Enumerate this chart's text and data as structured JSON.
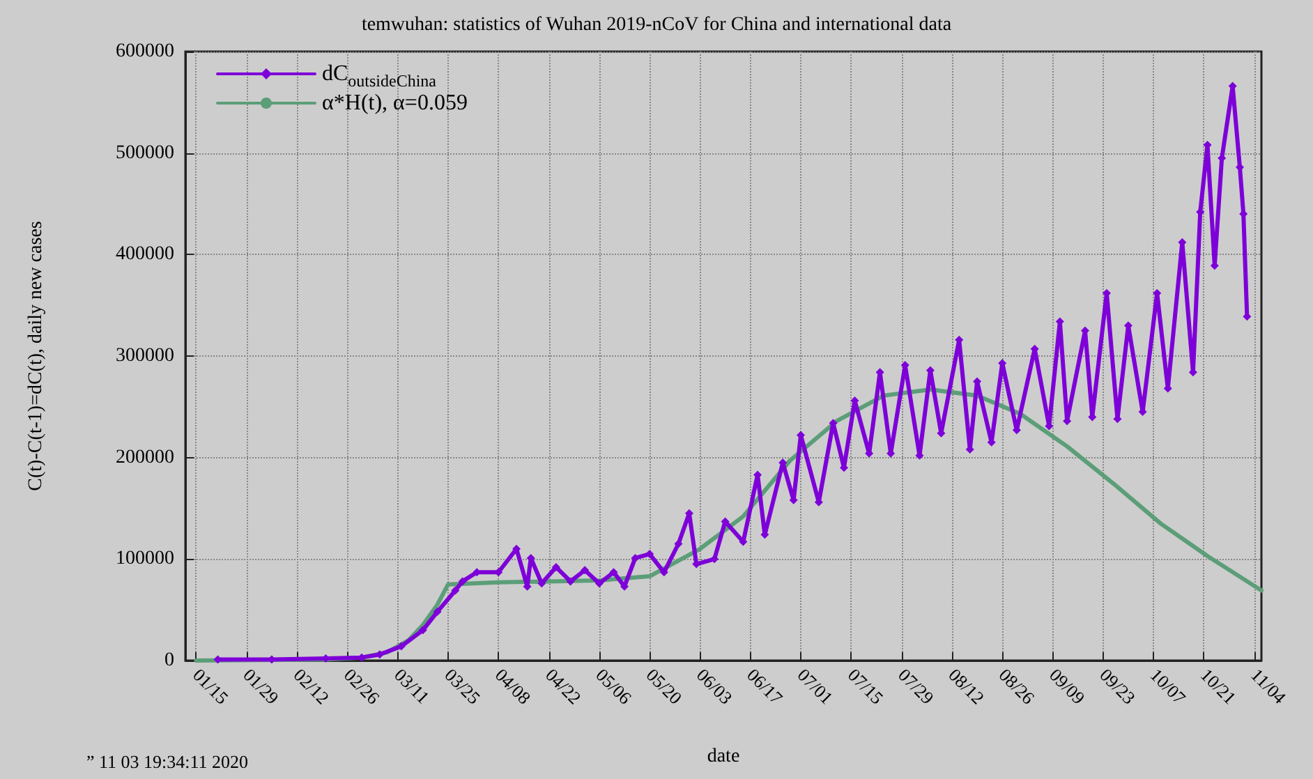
{
  "chart_data": {
    "type": "line",
    "title": "temwuhan: statistics of Wuhan 2019-nCoV for China and international data",
    "xlabel": "date",
    "ylabel": "C(t)-C(t-1)=dC(t), daily new cases",
    "annotations": [
      "” 11 03 19:34:11 2020"
    ],
    "xlim": [
      "2020-01-12",
      "2020-11-06"
    ],
    "xticks": [
      {
        "value": "2020-01-15",
        "label": "01/15"
      },
      {
        "value": "2020-01-29",
        "label": "01/29"
      },
      {
        "value": "2020-02-12",
        "label": "02/12"
      },
      {
        "value": "2020-02-26",
        "label": "02/26"
      },
      {
        "value": "2020-03-11",
        "label": "03/11"
      },
      {
        "value": "2020-03-25",
        "label": "03/25"
      },
      {
        "value": "2020-04-08",
        "label": "04/08"
      },
      {
        "value": "2020-04-22",
        "label": "04/22"
      },
      {
        "value": "2020-05-06",
        "label": "05/06"
      },
      {
        "value": "2020-05-20",
        "label": "05/20"
      },
      {
        "value": "2020-06-03",
        "label": "06/03"
      },
      {
        "value": "2020-06-17",
        "label": "06/17"
      },
      {
        "value": "2020-07-01",
        "label": "07/01"
      },
      {
        "value": "2020-07-15",
        "label": "07/15"
      },
      {
        "value": "2020-07-29",
        "label": "07/29"
      },
      {
        "value": "2020-08-12",
        "label": "08/12"
      },
      {
        "value": "2020-08-26",
        "label": "08/26"
      },
      {
        "value": "2020-09-09",
        "label": "09/09"
      },
      {
        "value": "2020-09-23",
        "label": "09/23"
      },
      {
        "value": "2020-10-07",
        "label": "10/07"
      },
      {
        "value": "2020-10-21",
        "label": "10/21"
      },
      {
        "value": "2020-11-04",
        "label": "11/04"
      }
    ],
    "ylim": [
      0,
      600000
    ],
    "yticks": [
      0,
      100000,
      200000,
      300000,
      400000,
      500000,
      600000
    ],
    "grid": true,
    "legend": "top left",
    "series": [
      {
        "name": "dC$_{outsideChina}$",
        "color": "#7e00d8",
        "marker": "diamond",
        "x": [
          "2020-01-21",
          "2020-02-05",
          "2020-02-20",
          "2020-03-01",
          "2020-03-06",
          "2020-03-12",
          "2020-03-18",
          "2020-03-22",
          "2020-03-27",
          "2020-03-29",
          "2020-04-02",
          "2020-04-08",
          "2020-04-13",
          "2020-04-16",
          "2020-04-17",
          "2020-04-20",
          "2020-04-24",
          "2020-04-28",
          "2020-05-02",
          "2020-05-06",
          "2020-05-10",
          "2020-05-13",
          "2020-05-16",
          "2020-05-20",
          "2020-05-24",
          "2020-05-28",
          "2020-05-31",
          "2020-06-02",
          "2020-06-07",
          "2020-06-10",
          "2020-06-15",
          "2020-06-19",
          "2020-06-21",
          "2020-06-26",
          "2020-06-29",
          "2020-07-01",
          "2020-07-06",
          "2020-07-10",
          "2020-07-13",
          "2020-07-16",
          "2020-07-20",
          "2020-07-23",
          "2020-07-26",
          "2020-07-30",
          "2020-08-03",
          "2020-08-06",
          "2020-08-09",
          "2020-08-14",
          "2020-08-17",
          "2020-08-19",
          "2020-08-23",
          "2020-08-26",
          "2020-08-30",
          "2020-09-04",
          "2020-09-08",
          "2020-09-11",
          "2020-09-13",
          "2020-09-18",
          "2020-09-20",
          "2020-09-24",
          "2020-09-27",
          "2020-09-30",
          "2020-10-04",
          "2020-10-08",
          "2020-10-11",
          "2020-10-15",
          "2020-10-18",
          "2020-10-20",
          "2020-10-22",
          "2020-10-24",
          "2020-10-26",
          "2020-10-29",
          "2020-10-31",
          "2020-11-01",
          "2020-11-02"
        ],
        "values": [
          1000,
          1000,
          2000,
          3000,
          6000,
          14000,
          30000,
          48000,
          69000,
          78000,
          87000,
          87000,
          110000,
          73000,
          101000,
          76000,
          92000,
          78000,
          89000,
          76000,
          87000,
          73000,
          101000,
          105000,
          87000,
          115000,
          145000,
          95000,
          100000,
          137000,
          117000,
          183000,
          124000,
          195000,
          158000,
          222000,
          156000,
          234000,
          190000,
          256000,
          204000,
          284000,
          204000,
          291000,
          202000,
          286000,
          224000,
          316000,
          208000,
          275000,
          215000,
          293000,
          227000,
          307000,
          231000,
          334000,
          236000,
          325000,
          240000,
          362000,
          238000,
          330000,
          245000,
          362000,
          268000,
          412000,
          284000,
          442000,
          508000,
          389000,
          495000,
          566000,
          486000,
          440000,
          339000
        ]
      },
      {
        "name": "α*H(t), α=0.059",
        "color": "#5b9e78",
        "x": [
          "2020-01-15",
          "2020-02-20",
          "2020-03-01",
          "2020-03-08",
          "2020-03-14",
          "2020-03-18",
          "2020-03-22",
          "2020-03-25",
          "2020-04-08",
          "2020-04-22",
          "2020-05-06",
          "2020-05-20",
          "2020-06-03",
          "2020-06-15",
          "2020-06-28",
          "2020-07-11",
          "2020-07-24",
          "2020-08-06",
          "2020-08-19",
          "2020-08-31",
          "2020-09-13",
          "2020-09-26",
          "2020-10-09",
          "2020-10-22",
          "2020-11-06"
        ],
        "values": [
          0,
          1000,
          3000,
          8000,
          20000,
          35000,
          55000,
          75000,
          77000,
          78000,
          79000,
          83000,
          110000,
          142000,
          197000,
          236000,
          261000,
          267000,
          261000,
          243000,
          211000,
          174000,
          135000,
          103000,
          69000
        ]
      }
    ]
  }
}
